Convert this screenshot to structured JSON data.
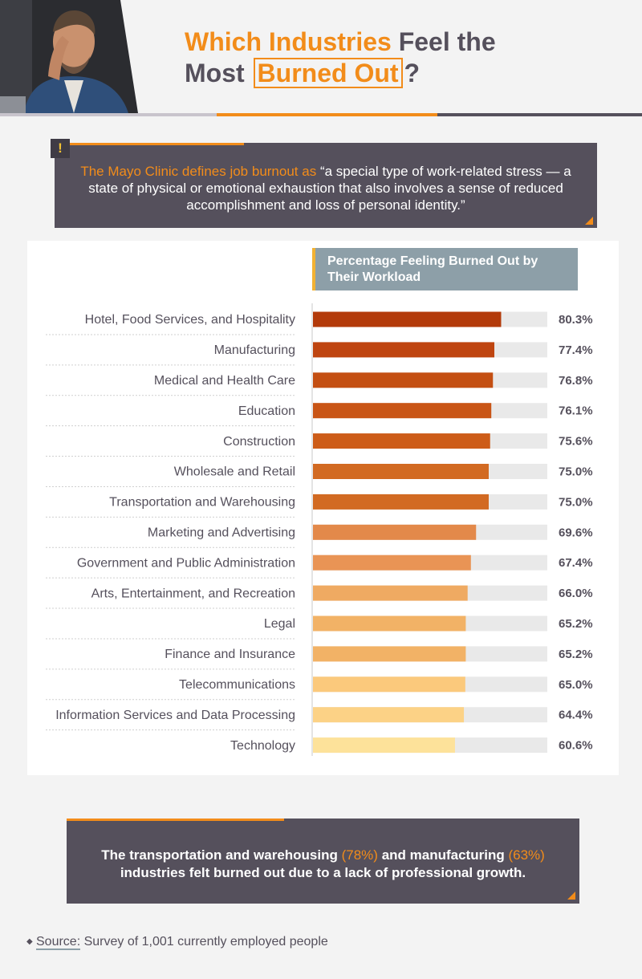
{
  "title": {
    "line1_accent": "Which Industries",
    "line1_rest": "Feel the",
    "line2_start": "Most",
    "line2_boxed": "Burned Out",
    "line2_end": "?"
  },
  "definition": {
    "icon": "exclamation-icon",
    "orange_part": "The Mayo Clinic defines job burnout as",
    "quote": "“a special type of work-related stress — a state of physical or emotional exhaustion that also involves a sense of reduced accomplishment and loss of personal identity.”"
  },
  "chart_data": {
    "type": "bar",
    "orientation": "horizontal",
    "title": "Percentage Feeling Burned Out by Their Workload",
    "categories": [
      "Hotel, Food Services, and Hospitality",
      "Manufacturing",
      "Medical and Health Care",
      "Education",
      "Construction",
      "Wholesale and Retail",
      "Transportation and Warehousing",
      "Marketing and Advertising",
      "Government and Public Administration",
      "Arts, Entertainment, and Recreation",
      "Legal",
      "Finance and Insurance",
      "Telecommunications",
      "Information Services and Data Processing",
      "Technology"
    ],
    "values": [
      80.3,
      77.4,
      76.8,
      76.1,
      75.6,
      75.0,
      75.0,
      69.6,
      67.4,
      66.0,
      65.2,
      65.2,
      65.0,
      64.4,
      60.6
    ],
    "value_labels": [
      "80.3%",
      "77.4%",
      "76.8%",
      "76.1%",
      "75.6%",
      "75.0%",
      "75.0%",
      "69.6%",
      "67.4%",
      "66.0%",
      "65.2%",
      "65.2%",
      "65.0%",
      "64.4%",
      "60.6%"
    ],
    "bar_colors": [
      "#b33a0a",
      "#bf4510",
      "#c44f12",
      "#c95516",
      "#cd5c18",
      "#d26a22",
      "#d26a22",
      "#e3894a",
      "#e99455",
      "#efaa62",
      "#f2b266",
      "#f2b266",
      "#fbc97c",
      "#fcd286",
      "#fde29a"
    ],
    "track_color": "#e9e9e9",
    "xlim": [
      0,
      100
    ]
  },
  "callout": {
    "part1": "The transportation and warehousing",
    "pct1": "(78%)",
    "part2": "and manufacturing",
    "pct2": "(63%)",
    "part3": "industries felt burned out due to a lack of professional growth."
  },
  "source": {
    "label": "Source:",
    "text": "Survey of 1,001 currently employed people"
  }
}
